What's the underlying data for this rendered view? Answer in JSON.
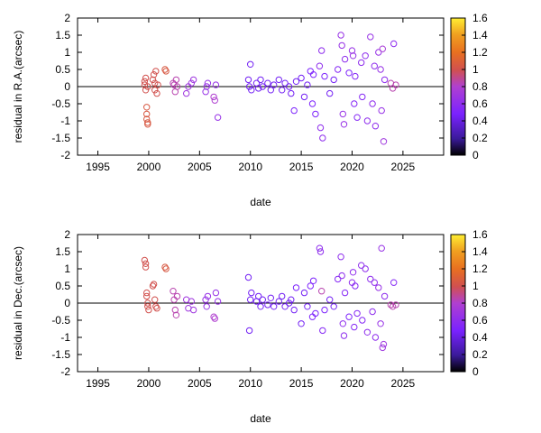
{
  "chart_data": [
    {
      "type": "scatter",
      "xlabel": "date",
      "ylabel": "residual in R.A.(arcsec)",
      "xlim": [
        1993,
        2029
      ],
      "ylim": [
        -2,
        2
      ],
      "xticks": [
        "1995",
        "2000",
        "2005",
        "2010",
        "2015",
        "2020",
        "2025"
      ],
      "yticks": [
        "2",
        "1.5",
        "1",
        "0.5",
        "0",
        "-0.5",
        "-1",
        "-1.5",
        "-2"
      ],
      "colorbar": {
        "range": [
          0,
          1.6
        ],
        "ticks": [
          "1.6",
          "1.4",
          "1.2",
          "1",
          "0.8",
          "0.6",
          "0.4",
          "0.2",
          "0"
        ]
      },
      "zero_line": true,
      "points": [
        [
          1999.6,
          0.05,
          1.0
        ],
        [
          1999.6,
          0.15,
          1.0
        ],
        [
          1999.7,
          -0.1,
          1.0
        ],
        [
          1999.7,
          0.25,
          1.0
        ],
        [
          1999.8,
          -0.6,
          1.05
        ],
        [
          1999.8,
          -0.8,
          1.05
        ],
        [
          1999.8,
          -0.95,
          1.05
        ],
        [
          1999.9,
          -1.05,
          1.05
        ],
        [
          1999.9,
          -1.1,
          1.05
        ],
        [
          1999.9,
          0.0,
          1.0
        ],
        [
          2000.4,
          0.2,
          1.0
        ],
        [
          2000.5,
          0.35,
          1.0
        ],
        [
          2000.6,
          0.1,
          1.0
        ],
        [
          2000.6,
          -0.1,
          1.0
        ],
        [
          2000.7,
          0.45,
          1.0
        ],
        [
          2000.8,
          -0.2,
          1.0
        ],
        [
          2000.9,
          0.05,
          1.0
        ],
        [
          2001.6,
          0.5,
          1.05
        ],
        [
          2001.7,
          0.45,
          1.05
        ],
        [
          2002.4,
          0.1,
          0.85
        ],
        [
          2002.5,
          0.05,
          0.85
        ],
        [
          2002.6,
          -0.15,
          0.85
        ],
        [
          2002.7,
          0.2,
          0.85
        ],
        [
          2002.8,
          0.0,
          0.85
        ],
        [
          2003.7,
          -0.2,
          0.7
        ],
        [
          2003.9,
          0.0,
          0.7
        ],
        [
          2004.2,
          0.1,
          0.7
        ],
        [
          2004.4,
          0.2,
          0.7
        ],
        [
          2005.6,
          -0.15,
          0.65
        ],
        [
          2005.7,
          0.0,
          0.65
        ],
        [
          2005.8,
          0.1,
          0.65
        ],
        [
          2006.4,
          -0.3,
          0.8
        ],
        [
          2006.5,
          -0.4,
          0.8
        ],
        [
          2006.6,
          0.05,
          0.65
        ],
        [
          2006.8,
          -0.9,
          0.65
        ],
        [
          2009.8,
          0.2,
          0.45
        ],
        [
          2009.9,
          0.0,
          0.45
        ],
        [
          2010.0,
          0.65,
          0.45
        ],
        [
          2010.1,
          -0.1,
          0.45
        ],
        [
          2010.6,
          0.1,
          0.45
        ],
        [
          2010.8,
          -0.05,
          0.45
        ],
        [
          2011.0,
          0.2,
          0.45
        ],
        [
          2011.2,
          0.0,
          0.45
        ],
        [
          2011.7,
          0.1,
          0.45
        ],
        [
          2012.0,
          -0.1,
          0.45
        ],
        [
          2012.3,
          0.05,
          0.45
        ],
        [
          2012.8,
          0.2,
          0.45
        ],
        [
          2013.1,
          -0.1,
          0.45
        ],
        [
          2013.4,
          0.1,
          0.45
        ],
        [
          2013.8,
          0.0,
          0.45
        ],
        [
          2014.0,
          -0.2,
          0.45
        ],
        [
          2014.3,
          -0.7,
          0.5
        ],
        [
          2014.5,
          0.15,
          0.45
        ],
        [
          2015.0,
          0.25,
          0.45
        ],
        [
          2015.3,
          -0.3,
          0.45
        ],
        [
          2015.6,
          0.05,
          0.45
        ],
        [
          2015.9,
          0.45,
          0.5
        ],
        [
          2016.1,
          -0.5,
          0.5
        ],
        [
          2016.2,
          0.35,
          0.5
        ],
        [
          2016.4,
          -0.8,
          0.5
        ],
        [
          2016.8,
          0.6,
          0.6
        ],
        [
          2016.9,
          -1.2,
          0.6
        ],
        [
          2017.0,
          1.05,
          0.6
        ],
        [
          2017.1,
          -1.5,
          0.6
        ],
        [
          2017.3,
          0.3,
          0.5
        ],
        [
          2017.8,
          -0.2,
          0.45
        ],
        [
          2018.2,
          0.2,
          0.45
        ],
        [
          2018.6,
          0.5,
          0.55
        ],
        [
          2018.9,
          1.5,
          0.65
        ],
        [
          2019.0,
          1.2,
          0.65
        ],
        [
          2019.1,
          -0.8,
          0.65
        ],
        [
          2019.2,
          -1.1,
          0.65
        ],
        [
          2019.3,
          0.8,
          0.6
        ],
        [
          2019.7,
          0.4,
          0.5
        ],
        [
          2020.0,
          1.05,
          0.65
        ],
        [
          2020.1,
          0.9,
          0.65
        ],
        [
          2020.2,
          -0.5,
          0.55
        ],
        [
          2020.3,
          0.3,
          0.55
        ],
        [
          2020.5,
          -0.9,
          0.55
        ],
        [
          2020.9,
          0.7,
          0.6
        ],
        [
          2021.0,
          -0.3,
          0.55
        ],
        [
          2021.3,
          0.9,
          0.6
        ],
        [
          2021.5,
          -1.0,
          0.6
        ],
        [
          2021.8,
          1.45,
          0.65
        ],
        [
          2022.0,
          -0.5,
          0.6
        ],
        [
          2022.2,
          0.6,
          0.6
        ],
        [
          2022.3,
          -1.15,
          0.6
        ],
        [
          2022.6,
          1.0,
          0.65
        ],
        [
          2022.8,
          0.5,
          0.65
        ],
        [
          2022.9,
          -0.7,
          0.65
        ],
        [
          2023.0,
          1.1,
          0.75
        ],
        [
          2023.1,
          -1.6,
          0.7
        ],
        [
          2023.2,
          0.2,
          0.6
        ],
        [
          2023.8,
          0.1,
          0.85
        ],
        [
          2024.0,
          -0.05,
          0.85
        ],
        [
          2024.1,
          1.25,
          0.6
        ],
        [
          2024.3,
          0.05,
          0.85
        ]
      ]
    },
    {
      "type": "scatter",
      "xlabel": "date",
      "ylabel": "residual in Dec.(arcsec)",
      "xlim": [
        1993,
        2029
      ],
      "ylim": [
        -2,
        2
      ],
      "xticks": [
        "1995",
        "2000",
        "2005",
        "2010",
        "2015",
        "2020",
        "2025"
      ],
      "yticks": [
        "2",
        "1.5",
        "1",
        "0.5",
        "0",
        "-0.5",
        "-1",
        "-1.5",
        "-2"
      ],
      "colorbar": {
        "range": [
          0,
          1.6
        ],
        "ticks": [
          "1.6",
          "1.4",
          "1.2",
          "1",
          "0.8",
          "0.6",
          "0.4",
          "0.2",
          "0"
        ]
      },
      "zero_line": true,
      "points": [
        [
          1999.6,
          1.25,
          1.0
        ],
        [
          1999.7,
          1.15,
          1.0
        ],
        [
          1999.7,
          1.05,
          1.0
        ],
        [
          1999.8,
          0.3,
          1.0
        ],
        [
          1999.8,
          0.2,
          1.0
        ],
        [
          1999.9,
          -0.1,
          1.0
        ],
        [
          1999.9,
          0.0,
          1.0
        ],
        [
          2000.0,
          -0.2,
          1.0
        ],
        [
          2000.4,
          0.5,
          1.0
        ],
        [
          2000.5,
          0.55,
          1.0
        ],
        [
          2000.6,
          0.1,
          1.0
        ],
        [
          2000.7,
          -0.1,
          1.0
        ],
        [
          2000.8,
          -0.15,
          1.0
        ],
        [
          2001.6,
          1.05,
          1.05
        ],
        [
          2001.7,
          1.0,
          1.05
        ],
        [
          2002.4,
          0.35,
          0.85
        ],
        [
          2002.5,
          0.1,
          0.85
        ],
        [
          2002.6,
          -0.2,
          0.85
        ],
        [
          2002.7,
          -0.35,
          0.85
        ],
        [
          2002.8,
          0.2,
          0.85
        ],
        [
          2003.7,
          0.1,
          0.7
        ],
        [
          2003.9,
          -0.15,
          0.7
        ],
        [
          2004.2,
          0.05,
          0.7
        ],
        [
          2004.4,
          -0.2,
          0.7
        ],
        [
          2005.6,
          0.1,
          0.65
        ],
        [
          2005.7,
          -0.1,
          0.65
        ],
        [
          2005.8,
          0.2,
          0.65
        ],
        [
          2006.4,
          -0.4,
          0.8
        ],
        [
          2006.5,
          -0.45,
          0.8
        ],
        [
          2006.6,
          0.3,
          0.65
        ],
        [
          2006.8,
          0.05,
          0.65
        ],
        [
          2009.8,
          0.75,
          0.45
        ],
        [
          2009.9,
          -0.8,
          0.45
        ],
        [
          2010.0,
          0.1,
          0.45
        ],
        [
          2010.1,
          0.3,
          0.45
        ],
        [
          2010.6,
          0.05,
          0.45
        ],
        [
          2010.8,
          0.2,
          0.45
        ],
        [
          2011.0,
          -0.1,
          0.45
        ],
        [
          2011.2,
          0.1,
          0.45
        ],
        [
          2011.7,
          -0.05,
          0.45
        ],
        [
          2012.0,
          0.15,
          0.45
        ],
        [
          2012.3,
          -0.1,
          0.45
        ],
        [
          2012.8,
          0.05,
          0.45
        ],
        [
          2013.1,
          0.2,
          0.45
        ],
        [
          2013.4,
          -0.1,
          0.45
        ],
        [
          2013.8,
          0.0,
          0.45
        ],
        [
          2014.0,
          0.1,
          0.45
        ],
        [
          2014.3,
          -0.2,
          0.45
        ],
        [
          2014.5,
          0.45,
          0.5
        ],
        [
          2015.0,
          -0.6,
          0.45
        ],
        [
          2015.3,
          0.3,
          0.45
        ],
        [
          2015.6,
          -0.1,
          0.45
        ],
        [
          2015.9,
          0.5,
          0.5
        ],
        [
          2016.1,
          -0.4,
          0.5
        ],
        [
          2016.2,
          0.65,
          0.5
        ],
        [
          2016.4,
          -0.3,
          0.5
        ],
        [
          2016.8,
          1.6,
          0.6
        ],
        [
          2016.9,
          1.5,
          0.6
        ],
        [
          2017.0,
          0.35,
          0.85
        ],
        [
          2017.1,
          -0.8,
          0.55
        ],
        [
          2017.3,
          -0.2,
          0.5
        ],
        [
          2017.8,
          0.1,
          0.45
        ],
        [
          2018.2,
          -0.1,
          0.45
        ],
        [
          2018.6,
          0.7,
          0.55
        ],
        [
          2018.9,
          1.35,
          0.6
        ],
        [
          2019.0,
          0.8,
          0.6
        ],
        [
          2019.1,
          -0.6,
          0.6
        ],
        [
          2019.2,
          -0.95,
          0.6
        ],
        [
          2019.3,
          0.3,
          0.55
        ],
        [
          2019.7,
          -0.4,
          0.5
        ],
        [
          2020.0,
          0.6,
          0.6
        ],
        [
          2020.1,
          0.9,
          0.6
        ],
        [
          2020.2,
          -0.7,
          0.55
        ],
        [
          2020.3,
          0.5,
          0.55
        ],
        [
          2020.5,
          -0.3,
          0.55
        ],
        [
          2020.9,
          1.1,
          0.6
        ],
        [
          2021.0,
          -0.5,
          0.55
        ],
        [
          2021.3,
          1.0,
          0.6
        ],
        [
          2021.5,
          -0.85,
          0.6
        ],
        [
          2021.8,
          0.7,
          0.6
        ],
        [
          2022.0,
          -0.25,
          0.6
        ],
        [
          2022.2,
          0.6,
          0.6
        ],
        [
          2022.3,
          -1.0,
          0.6
        ],
        [
          2022.6,
          0.45,
          0.65
        ],
        [
          2022.8,
          -0.6,
          0.65
        ],
        [
          2022.9,
          1.6,
          0.65
        ],
        [
          2023.0,
          -1.3,
          0.7
        ],
        [
          2023.1,
          -1.2,
          0.7
        ],
        [
          2023.2,
          0.2,
          0.6
        ],
        [
          2023.8,
          -0.05,
          0.85
        ],
        [
          2024.0,
          -0.1,
          0.85
        ],
        [
          2024.1,
          0.6,
          0.55
        ],
        [
          2024.3,
          -0.05,
          0.85
        ]
      ]
    }
  ]
}
